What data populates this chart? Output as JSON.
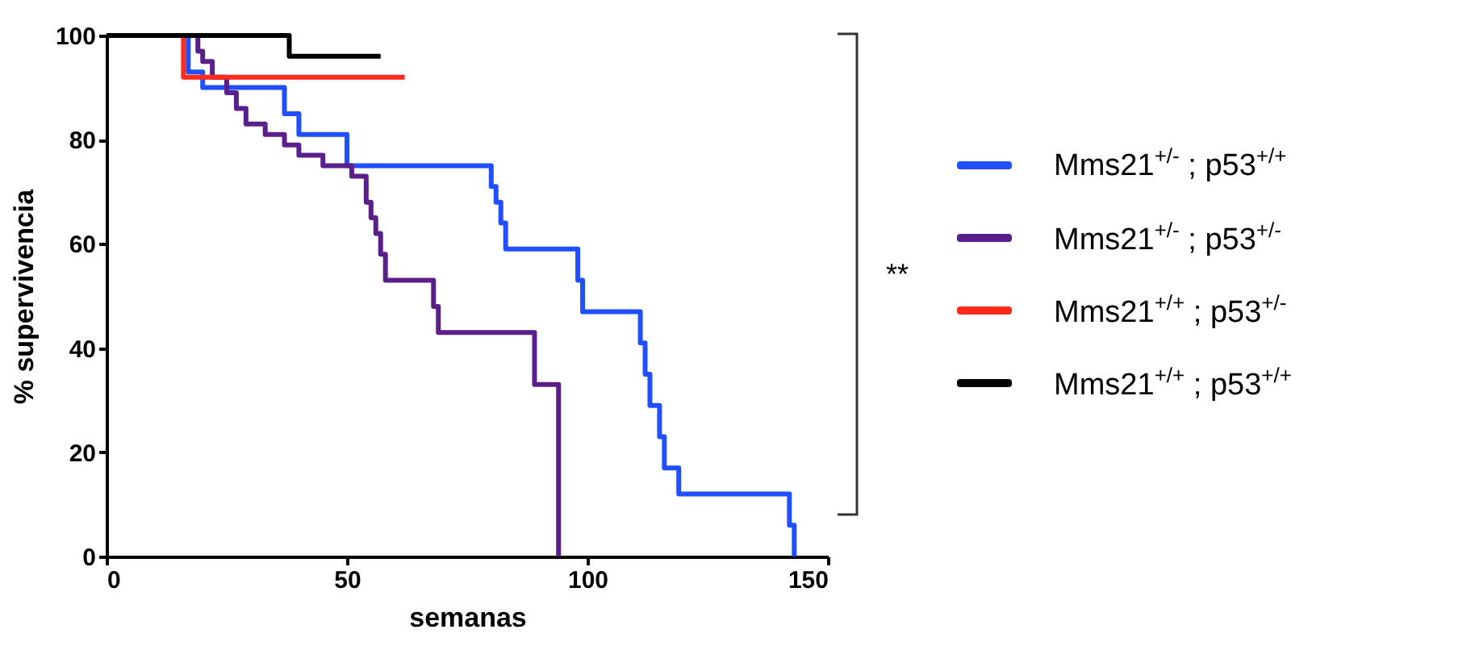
{
  "chart_data": {
    "type": "step",
    "xlabel": "semanas",
    "ylabel": "% supervivencia",
    "xlim": [
      0,
      150
    ],
    "xticks": [
      0,
      50,
      100,
      150
    ],
    "ylim": [
      0,
      100
    ],
    "yticks": [
      0,
      20,
      40,
      60,
      80,
      100
    ],
    "grid": false,
    "legend": "right",
    "annotations": [
      "**"
    ],
    "series": [
      {
        "name": "Mms21$^{+/-}$ ; p53$^{+/+}$",
        "color": "#1f4fff",
        "x": [
          0,
          17,
          20,
          37,
          40,
          50,
          80,
          81,
          82,
          83,
          98,
          99,
          111,
          112,
          113,
          115,
          116,
          119,
          142,
          143
        ],
        "values": [
          100,
          93,
          90,
          85,
          81,
          75,
          71,
          68,
          64,
          59,
          53,
          47,
          41,
          35,
          29,
          23,
          17,
          12,
          6,
          0
        ]
      },
      {
        "name": "Mms21$^{+/-}$ ; p53$^{+/-}$",
        "color": "#5b1f8c",
        "x": [
          0,
          19,
          20,
          22,
          25,
          27,
          29,
          33,
          37,
          40,
          45,
          51,
          54,
          55,
          56,
          57,
          58,
          68,
          69,
          89,
          94
        ],
        "values": [
          100,
          97,
          95,
          92,
          89,
          86,
          83,
          81,
          79,
          77,
          75,
          73,
          68,
          65,
          62,
          58,
          53,
          48,
          43,
          33,
          0
        ]
      },
      {
        "name": "Mms21$^{+/+}$ ; p53$^{+/-}$",
        "color": "#ff2a1a",
        "x": [
          0,
          16,
          62
        ],
        "values": [
          100,
          92,
          92
        ]
      },
      {
        "name": "Mms21$^{+/+}$ ; p53$^{+/+}$",
        "color": "#000000",
        "x": [
          0,
          38,
          57
        ],
        "values": [
          100,
          96,
          96
        ]
      }
    ]
  }
}
